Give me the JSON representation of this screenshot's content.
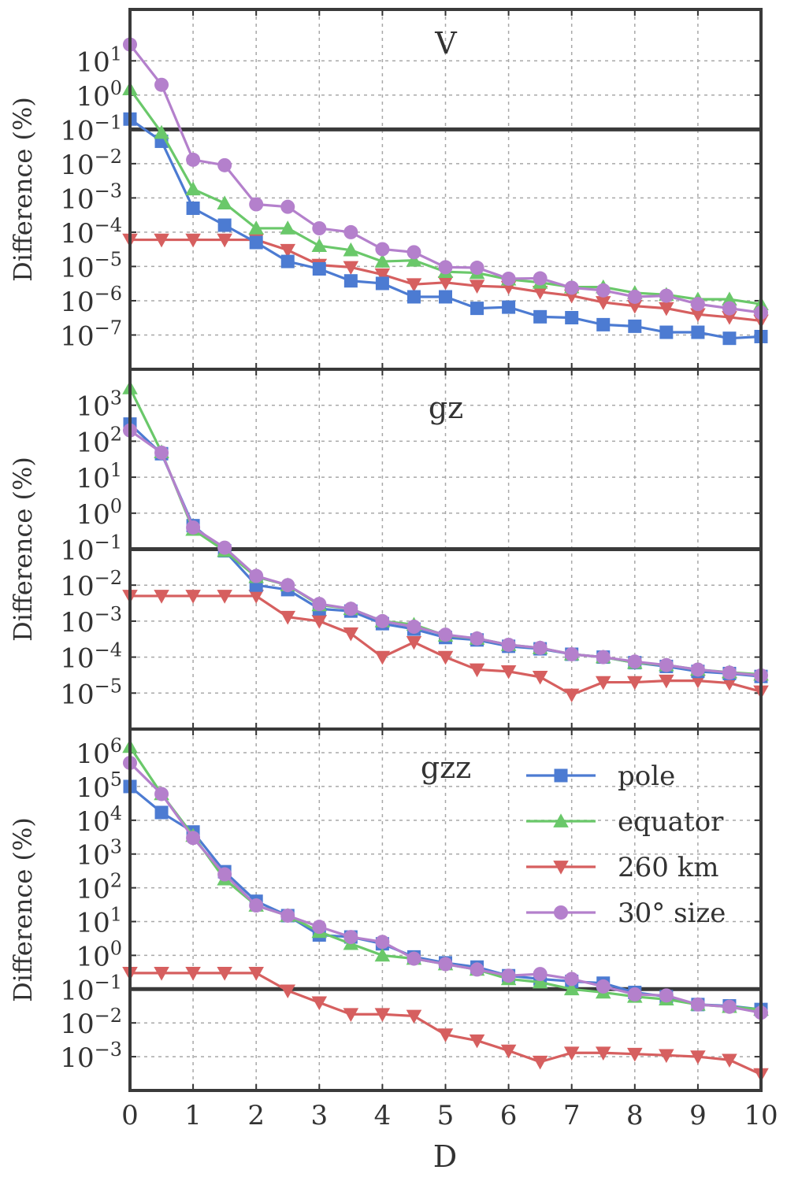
{
  "chart_data": {
    "type": "line",
    "xlabel": "D",
    "xlim": [
      0,
      10
    ],
    "x_ticks": [
      "0",
      "1",
      "2",
      "3",
      "4",
      "5",
      "6",
      "7",
      "8",
      "9",
      "10"
    ],
    "x": [
      0,
      0.5,
      1,
      1.5,
      2,
      2.5,
      3,
      3.5,
      4,
      4.5,
      5,
      5.5,
      6,
      6.5,
      7,
      7.5,
      8,
      8.5,
      9,
      9.5,
      10
    ],
    "grid": true,
    "log_y": true,
    "legend": {
      "placement": "upper-right of bottom panel",
      "entries": [
        "pole",
        "equator",
        "260 km",
        "30° size"
      ]
    },
    "styles": {
      "pole": {
        "color": "#4c7bd2",
        "marker": "square"
      },
      "equator": {
        "color": "#6ac86a",
        "marker": "triangle-up"
      },
      "260 km": {
        "color": "#d65f5f",
        "marker": "triangle-down"
      },
      "30° size": {
        "color": "#b480cc",
        "marker": "circle"
      }
    },
    "panels": [
      {
        "title": "V",
        "ylabel": "Difference (%)",
        "ylim_exp": [
          -8,
          2.5
        ],
        "y_ticks": [
          {
            "base": "10",
            "exp": "−7"
          },
          {
            "base": "10",
            "exp": "−6"
          },
          {
            "base": "10",
            "exp": "−5"
          },
          {
            "base": "10",
            "exp": "−4"
          },
          {
            "base": "10",
            "exp": "−3"
          },
          {
            "base": "10",
            "exp": "−2"
          },
          {
            "base": "10",
            "exp": "−1"
          },
          {
            "base": "10",
            "exp": "0"
          },
          {
            "base": "10",
            "exp": "1"
          }
        ],
        "threshold": 0.1,
        "series": [
          {
            "name": "pole",
            "values": [
              0.2,
              0.045,
              0.0005,
              0.00016,
              5e-05,
              1.4e-05,
              8.5e-06,
              3.8e-06,
              3.2e-06,
              1.3e-06,
              1.3e-06,
              6e-07,
              6.5e-07,
              3.4e-07,
              3.2e-07,
              2e-07,
              1.8e-07,
              1.2e-07,
              1.2e-07,
              8e-08,
              9e-08
            ]
          },
          {
            "name": "equator",
            "values": [
              1.5,
              0.08,
              0.0018,
              0.0007,
              0.00013,
              0.00013,
              4e-05,
              3e-05,
              1.4e-05,
              1.5e-05,
              7e-06,
              6.5e-06,
              4.2e-06,
              3.4e-06,
              2.5e-06,
              2.5e-06,
              1.7e-06,
              1.5e-06,
              1.1e-06,
              1.1e-06,
              8e-07
            ]
          },
          {
            "name": "260 km",
            "values": [
              6e-05,
              6e-05,
              6e-05,
              6e-05,
              6e-05,
              3e-05,
              1.1e-05,
              9.5e-06,
              5.8e-06,
              3e-06,
              3.4e-06,
              2.7e-06,
              2.5e-06,
              1.8e-06,
              1.4e-06,
              9e-07,
              7e-07,
              6e-07,
              4e-07,
              3.3e-07,
              2.6e-07
            ]
          },
          {
            "name": "30° size",
            "values": [
              30,
              2,
              0.013,
              0.009,
              0.00065,
              0.00055,
              0.00013,
              0.0001,
              3.2e-05,
              2.6e-05,
              9.5e-06,
              9.2e-06,
              4.4e-06,
              4.5e-06,
              2.4e-06,
              2e-06,
              1.3e-06,
              1.4e-06,
              8e-07,
              6e-07,
              4.5e-07
            ]
          }
        ]
      },
      {
        "title": "gz",
        "ylabel": "Difference (%)",
        "ylim_exp": [
          -6,
          4
        ],
        "y_ticks": [
          {
            "base": "10",
            "exp": "−5"
          },
          {
            "base": "10",
            "exp": "−4"
          },
          {
            "base": "10",
            "exp": "−3"
          },
          {
            "base": "10",
            "exp": "−2"
          },
          {
            "base": "10",
            "exp": "−1"
          },
          {
            "base": "10",
            "exp": "0"
          },
          {
            "base": "10",
            "exp": "1"
          },
          {
            "base": "10",
            "exp": "2"
          },
          {
            "base": "10",
            "exp": "3"
          }
        ],
        "threshold": 0.1,
        "series": [
          {
            "name": "pole",
            "values": [
              300,
              45,
              0.45,
              0.09,
              0.01,
              0.0075,
              0.0022,
              0.0019,
              0.00085,
              0.0006,
              0.00035,
              0.0003,
              0.0002,
              0.00017,
              0.00012,
              0.0001,
              7e-05,
              5.5e-05,
              4e-05,
              3.5e-05,
              2.9e-05
            ]
          },
          {
            "name": "equator",
            "values": [
              3000,
              50,
              0.35,
              0.09,
              0.017,
              0.01,
              0.0028,
              0.0022,
              0.001,
              0.0008,
              0.0004,
              0.00033,
              0.00022,
              0.00018,
              0.00012,
              0.0001,
              7e-05,
              6e-05,
              4.5e-05,
              3.8e-05,
              3.3e-05
            ]
          },
          {
            "name": "260 km",
            "values": [
              0.005,
              0.005,
              0.005,
              0.005,
              0.005,
              0.0013,
              0.001,
              0.00045,
              0.0001,
              0.00026,
              0.0001,
              4.5e-05,
              4e-05,
              2.8e-05,
              9e-06,
              2e-05,
              2e-05,
              2.2e-05,
              2.2e-05,
              1.9e-05,
              1.1e-05
            ]
          },
          {
            "name": "30° size",
            "values": [
              200,
              48,
              0.4,
              0.11,
              0.018,
              0.01,
              0.003,
              0.0022,
              0.001,
              0.0007,
              0.00042,
              0.00033,
              0.00022,
              0.00018,
              0.00012,
              0.0001,
              7.5e-05,
              6e-05,
              4.5e-05,
              3.7e-05,
              3.1e-05
            ]
          }
        ]
      },
      {
        "title": "gzz",
        "ylabel": "Difference (%)",
        "ylim_exp": [
          -4,
          6.7
        ],
        "y_ticks": [
          {
            "base": "10",
            "exp": "−3"
          },
          {
            "base": "10",
            "exp": "−2"
          },
          {
            "base": "10",
            "exp": "−1"
          },
          {
            "base": "10",
            "exp": "0"
          },
          {
            "base": "10",
            "exp": "1"
          },
          {
            "base": "10",
            "exp": "2"
          },
          {
            "base": "10",
            "exp": "3"
          },
          {
            "base": "10",
            "exp": "4"
          },
          {
            "base": "10",
            "exp": "5"
          },
          {
            "base": "10",
            "exp": "6"
          }
        ],
        "threshold": 0.1,
        "series": [
          {
            "name": "pole",
            "values": [
              100000,
              17000,
              4500,
              300,
              40,
              15,
              4,
              3.5,
              2.2,
              0.9,
              0.6,
              0.45,
              0.25,
              0.2,
              0.17,
              0.15,
              0.08,
              0.06,
              0.035,
              0.032,
              0.025
            ]
          },
          {
            "name": "equator",
            "values": [
              1500000,
              60000,
              3500,
              180,
              30,
              15,
              5,
              2.2,
              1,
              0.8,
              0.55,
              0.38,
              0.2,
              0.16,
              0.1,
              0.08,
              0.06,
              0.05,
              0.035,
              0.03,
              0.025
            ]
          },
          {
            "name": "260 km",
            "values": [
              0.3,
              0.3,
              0.3,
              0.3,
              0.3,
              0.09,
              0.04,
              0.018,
              0.018,
              0.016,
              0.0045,
              0.003,
              0.0015,
              0.0007,
              0.0013,
              0.0013,
              0.0012,
              0.0011,
              0.001,
              0.0008,
              0.0003
            ]
          },
          {
            "name": "30° size",
            "values": [
              500000,
              60000,
              3000,
              250,
              30,
              15,
              7,
              3.5,
              2.5,
              0.8,
              0.55,
              0.38,
              0.25,
              0.28,
              0.2,
              0.12,
              0.07,
              0.065,
              0.035,
              0.03,
              0.02
            ]
          }
        ]
      }
    ]
  }
}
